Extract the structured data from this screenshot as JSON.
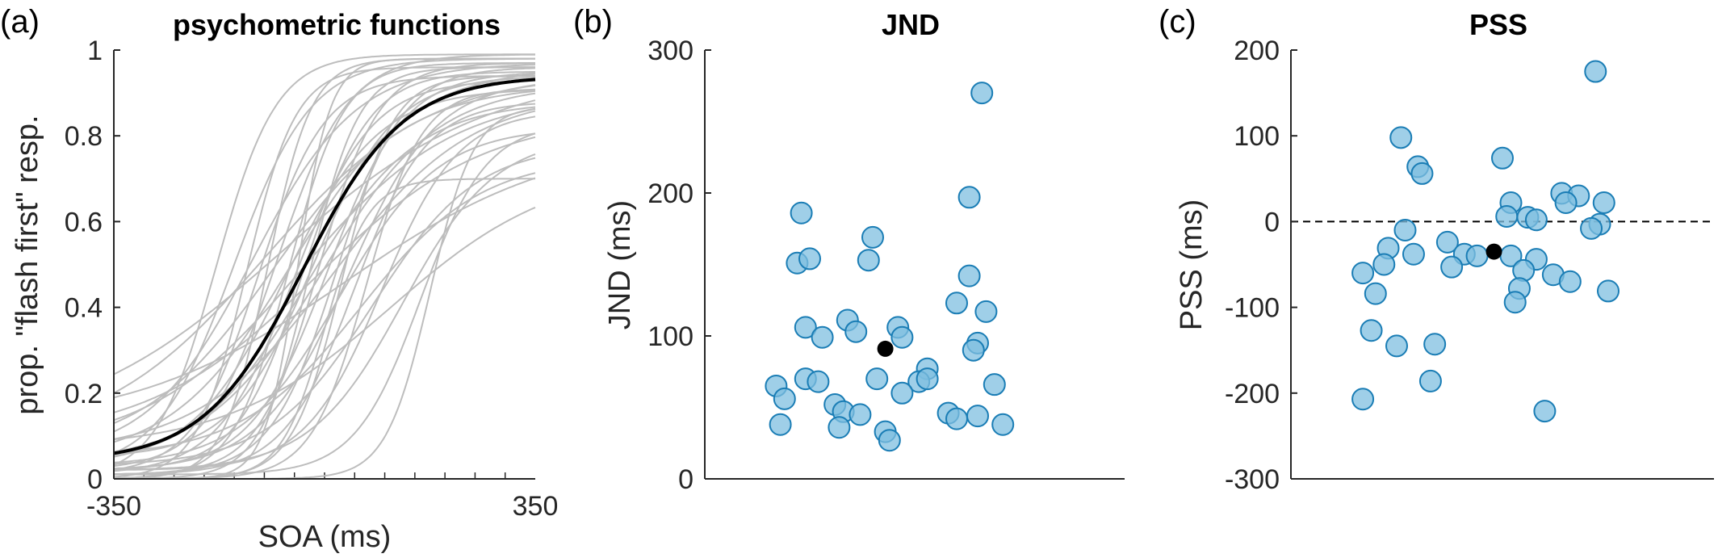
{
  "chart_data": [
    {
      "type": "line",
      "panel_label": "(a)",
      "title": "psychometric functions",
      "xlabel": "SOA (ms)",
      "ylabel": "prop. \"flash first\" resp.",
      "xlim": [
        -350,
        350
      ],
      "ylim": [
        0,
        1
      ],
      "xticks": [
        "-350",
        "350"
      ],
      "yticks": [
        "0",
        "0.2",
        "0.4",
        "0.6",
        "0.8",
        "1"
      ],
      "individual_color": "#bdbdbd",
      "mean_color": "#000000",
      "mean_curve": {
        "name": "mean",
        "pss": -35,
        "jnd": 91,
        "guess_low": 0.04,
        "lapse_high": 0.06
      },
      "individual_curves": [
        {
          "pss": -180,
          "jnd": 55,
          "guess_low": 0.0,
          "lapse_high": 0.01
        },
        {
          "pss": -150,
          "jnd": 70,
          "guess_low": 0.02,
          "lapse_high": 0.02
        },
        {
          "pss": -130,
          "jnd": 45,
          "guess_low": 0.0,
          "lapse_high": 0.04
        },
        {
          "pss": -120,
          "jnd": 95,
          "guess_low": 0.05,
          "lapse_high": 0.03
        },
        {
          "pss": -110,
          "jnd": 60,
          "guess_low": 0.01,
          "lapse_high": 0.06
        },
        {
          "pss": -100,
          "jnd": 150,
          "guess_low": 0.08,
          "lapse_high": 0.05
        },
        {
          "pss": -95,
          "jnd": 40,
          "guess_low": 0.0,
          "lapse_high": 0.02
        },
        {
          "pss": -85,
          "jnd": 120,
          "guess_low": 0.06,
          "lapse_high": 0.08
        },
        {
          "pss": -80,
          "jnd": 65,
          "guess_low": 0.02,
          "lapse_high": 0.01
        },
        {
          "pss": -75,
          "jnd": 190,
          "guess_low": 0.1,
          "lapse_high": 0.05
        },
        {
          "pss": -65,
          "jnd": 85,
          "guess_low": 0.03,
          "lapse_high": 0.09
        },
        {
          "pss": -60,
          "jnd": 50,
          "guess_low": 0.0,
          "lapse_high": 0.03
        },
        {
          "pss": -55,
          "jnd": 110,
          "guess_low": 0.04,
          "lapse_high": 0.04
        },
        {
          "pss": -50,
          "jnd": 70,
          "guess_low": 0.01,
          "lapse_high": 0.07
        },
        {
          "pss": -45,
          "jnd": 30,
          "guess_low": 0.0,
          "lapse_high": 0.02
        },
        {
          "pss": -40,
          "jnd": 140,
          "guess_low": 0.07,
          "lapse_high": 0.1
        },
        {
          "pss": -35,
          "jnd": 60,
          "guess_low": 0.02,
          "lapse_high": 0.05
        },
        {
          "pss": -30,
          "jnd": 100,
          "guess_low": 0.03,
          "lapse_high": 0.12
        },
        {
          "pss": -25,
          "jnd": 45,
          "guess_low": 0.0,
          "lapse_high": 0.04
        },
        {
          "pss": -20,
          "jnd": 75,
          "guess_low": 0.05,
          "lapse_high": 0.06
        },
        {
          "pss": -15,
          "jnd": 155,
          "guess_low": 0.09,
          "lapse_high": 0.15
        },
        {
          "pss": -10,
          "jnd": 55,
          "guess_low": 0.01,
          "lapse_high": 0.03
        },
        {
          "pss": -5,
          "jnd": 105,
          "guess_low": 0.04,
          "lapse_high": 0.08
        },
        {
          "pss": 0,
          "jnd": 40,
          "guess_low": 0.0,
          "lapse_high": 0.3
        },
        {
          "pss": 5,
          "jnd": 70,
          "guess_low": 0.02,
          "lapse_high": 0.05
        },
        {
          "pss": 15,
          "jnd": 125,
          "guess_low": 0.06,
          "lapse_high": 0.1
        },
        {
          "pss": 20,
          "jnd": 60,
          "guess_low": 0.01,
          "lapse_high": 0.04
        },
        {
          "pss": 25,
          "jnd": 90,
          "guess_low": 0.03,
          "lapse_high": 0.18
        },
        {
          "pss": 30,
          "jnd": 45,
          "guess_low": 0.0,
          "lapse_high": 0.06
        },
        {
          "pss": 35,
          "jnd": 195,
          "guess_low": 0.12,
          "lapse_high": 0.2
        },
        {
          "pss": 40,
          "jnd": 80,
          "guess_low": 0.02,
          "lapse_high": 0.07
        },
        {
          "pss": 50,
          "jnd": 65,
          "guess_low": 0.01,
          "lapse_high": 0.12
        },
        {
          "pss": 60,
          "jnd": 110,
          "guess_low": 0.05,
          "lapse_high": 0.25
        },
        {
          "pss": 70,
          "jnd": 50,
          "guess_low": 0.0,
          "lapse_high": 0.09
        },
        {
          "pss": 80,
          "jnd": 95,
          "guess_low": 0.03,
          "lapse_high": 0.22
        },
        {
          "pss": 95,
          "jnd": 70,
          "guess_low": 0.02,
          "lapse_high": 0.14
        },
        {
          "pss": 110,
          "jnd": 150,
          "guess_low": 0.07,
          "lapse_high": 0.27
        },
        {
          "pss": 130,
          "jnd": 85,
          "guess_low": 0.02,
          "lapse_high": 0.2
        },
        {
          "pss": 160,
          "jnd": 60,
          "guess_low": 0.01,
          "lapse_high": 0.17
        },
        {
          "pss": 175,
          "jnd": 40,
          "guess_low": 0.0,
          "lapse_high": 0.13
        }
      ]
    },
    {
      "type": "scatter",
      "panel_label": "(b)",
      "title": "JND",
      "ylabel": "JND (ms)",
      "ylim": [
        0,
        300
      ],
      "yticks": [
        "0",
        "100",
        "200",
        "300"
      ],
      "xlim": [
        0,
        1
      ],
      "point_color": "#7fbfe0",
      "point_edge_color": "#1a7db5",
      "mean_color": "#000000",
      "points": [
        {
          "x": 0.23,
          "y": 186
        },
        {
          "x": 0.22,
          "y": 151
        },
        {
          "x": 0.25,
          "y": 154
        },
        {
          "x": 0.4,
          "y": 169
        },
        {
          "x": 0.39,
          "y": 153
        },
        {
          "x": 0.66,
          "y": 270
        },
        {
          "x": 0.63,
          "y": 197
        },
        {
          "x": 0.63,
          "y": 142
        },
        {
          "x": 0.6,
          "y": 123
        },
        {
          "x": 0.67,
          "y": 117
        },
        {
          "x": 0.24,
          "y": 106
        },
        {
          "x": 0.34,
          "y": 111
        },
        {
          "x": 0.46,
          "y": 106
        },
        {
          "x": 0.28,
          "y": 99
        },
        {
          "x": 0.36,
          "y": 103
        },
        {
          "x": 0.47,
          "y": 99
        },
        {
          "x": 0.65,
          "y": 95
        },
        {
          "x": 0.64,
          "y": 90
        },
        {
          "x": 0.53,
          "y": 77
        },
        {
          "x": 0.17,
          "y": 65
        },
        {
          "x": 0.19,
          "y": 56
        },
        {
          "x": 0.24,
          "y": 70
        },
        {
          "x": 0.27,
          "y": 68
        },
        {
          "x": 0.41,
          "y": 70
        },
        {
          "x": 0.51,
          "y": 68
        },
        {
          "x": 0.53,
          "y": 70
        },
        {
          "x": 0.47,
          "y": 60
        },
        {
          "x": 0.69,
          "y": 66
        },
        {
          "x": 0.31,
          "y": 52
        },
        {
          "x": 0.33,
          "y": 47
        },
        {
          "x": 0.37,
          "y": 45
        },
        {
          "x": 0.58,
          "y": 46
        },
        {
          "x": 0.18,
          "y": 38
        },
        {
          "x": 0.32,
          "y": 36
        },
        {
          "x": 0.43,
          "y": 33
        },
        {
          "x": 0.44,
          "y": 27
        },
        {
          "x": 0.6,
          "y": 42
        },
        {
          "x": 0.65,
          "y": 44
        },
        {
          "x": 0.71,
          "y": 38
        }
      ],
      "mean_point": {
        "x": 0.43,
        "y": 91
      }
    },
    {
      "type": "scatter",
      "panel_label": "(c)",
      "title": "PSS",
      "ylabel": "PSS (ms)",
      "ylim": [
        -300,
        200
      ],
      "yticks": [
        "-300",
        "-200",
        "-100",
        "0",
        "100",
        "200"
      ],
      "xlim": [
        0,
        1
      ],
      "reference_line": {
        "y": 0,
        "style": "dashed"
      },
      "point_color": "#7fbfe0",
      "point_edge_color": "#1a7db5",
      "mean_color": "#000000",
      "points": [
        {
          "x": 0.72,
          "y": 175
        },
        {
          "x": 0.26,
          "y": 98
        },
        {
          "x": 0.5,
          "y": 74
        },
        {
          "x": 0.3,
          "y": 64
        },
        {
          "x": 0.31,
          "y": 56
        },
        {
          "x": 0.64,
          "y": 33
        },
        {
          "x": 0.68,
          "y": 30
        },
        {
          "x": 0.52,
          "y": 22
        },
        {
          "x": 0.65,
          "y": 22
        },
        {
          "x": 0.74,
          "y": 22
        },
        {
          "x": 0.51,
          "y": 6
        },
        {
          "x": 0.56,
          "y": 5
        },
        {
          "x": 0.58,
          "y": 2
        },
        {
          "x": 0.73,
          "y": -3
        },
        {
          "x": 0.71,
          "y": -8
        },
        {
          "x": 0.27,
          "y": -10
        },
        {
          "x": 0.23,
          "y": -31
        },
        {
          "x": 0.37,
          "y": -24
        },
        {
          "x": 0.41,
          "y": -38
        },
        {
          "x": 0.29,
          "y": -38
        },
        {
          "x": 0.44,
          "y": -40
        },
        {
          "x": 0.52,
          "y": -40
        },
        {
          "x": 0.58,
          "y": -44
        },
        {
          "x": 0.22,
          "y": -50
        },
        {
          "x": 0.38,
          "y": -53
        },
        {
          "x": 0.55,
          "y": -57
        },
        {
          "x": 0.62,
          "y": -62
        },
        {
          "x": 0.17,
          "y": -60
        },
        {
          "x": 0.66,
          "y": -70
        },
        {
          "x": 0.2,
          "y": -84
        },
        {
          "x": 0.54,
          "y": -78
        },
        {
          "x": 0.75,
          "y": -81
        },
        {
          "x": 0.53,
          "y": -94
        },
        {
          "x": 0.19,
          "y": -127
        },
        {
          "x": 0.25,
          "y": -145
        },
        {
          "x": 0.34,
          "y": -143
        },
        {
          "x": 0.33,
          "y": -186
        },
        {
          "x": 0.17,
          "y": -207
        },
        {
          "x": 0.6,
          "y": -221
        }
      ],
      "mean_point": {
        "x": 0.48,
        "y": -35
      }
    }
  ]
}
